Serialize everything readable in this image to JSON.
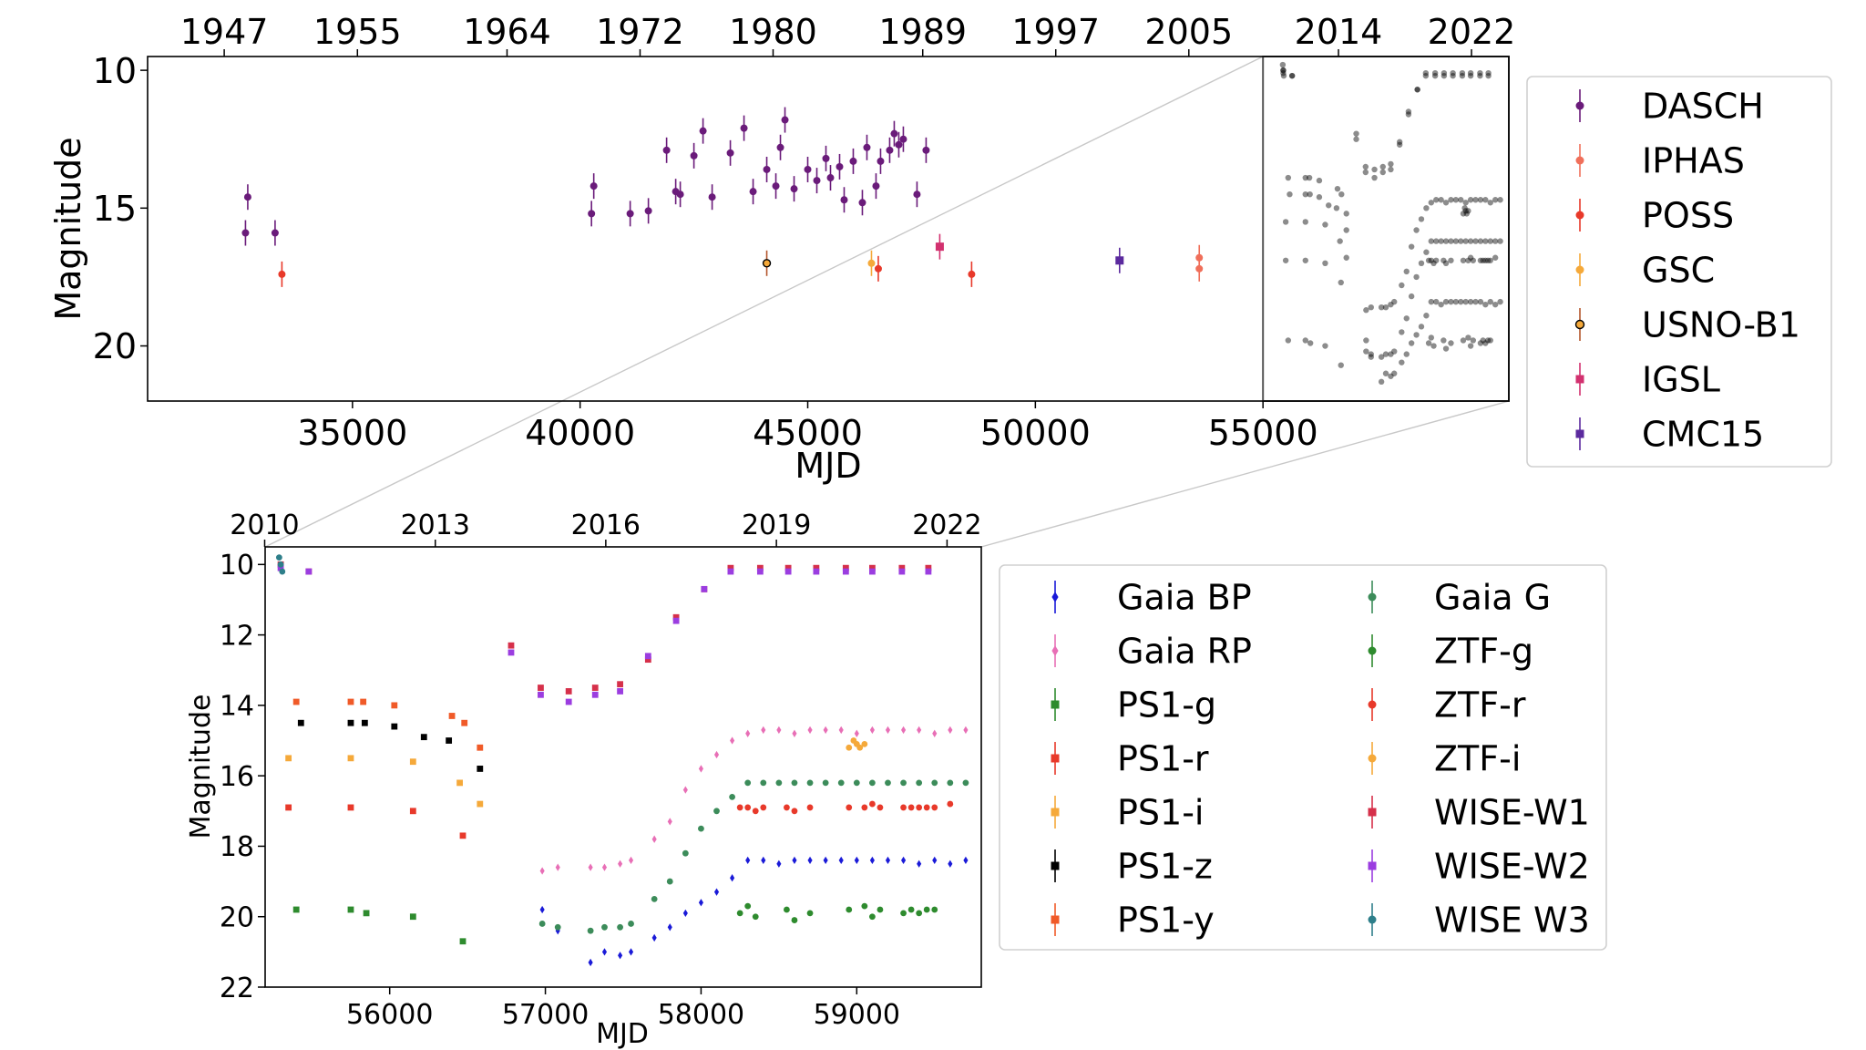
{
  "chart_data": [
    {
      "type": "scatter",
      "panel": "top",
      "xlabel": "MJD",
      "ylabel": "Magnitude",
      "x_range": [
        30500,
        60400
      ],
      "y_range": [
        22,
        9.5
      ],
      "y_inverted": true,
      "x_ticks": [
        35000,
        40000,
        45000,
        50000,
        55000
      ],
      "x_tick_labels": [
        "35000",
        "40000",
        "45000",
        "50000",
        "55000"
      ],
      "y_ticks": [
        10,
        15,
        20
      ],
      "y_tick_labels": [
        "10",
        "15",
        "20"
      ],
      "top_axis_ticks": [
        {
          "mjd": 32183,
          "label": "1947"
        },
        {
          "mjd": 35109,
          "label": "1955"
        },
        {
          "mjd": 38395,
          "label": "1964"
        },
        {
          "mjd": 41317,
          "label": "1972"
        },
        {
          "mjd": 44239,
          "label": "1980"
        },
        {
          "mjd": 47526,
          "label": "1989"
        },
        {
          "mjd": 50448,
          "label": "1997"
        },
        {
          "mjd": 53371,
          "label": "2005"
        },
        {
          "mjd": 56658,
          "label": "2014"
        },
        {
          "mjd": 59580,
          "label": "2022"
        }
      ],
      "inset": {
        "x_range": [
          55000,
          59800
        ],
        "y_range": [
          22,
          9.5
        ],
        "description": "zoomed recent light curve"
      },
      "legend": {
        "placement": "right",
        "entries": [
          {
            "label": "DASCH",
            "color": "#6a1b7a",
            "marker": "circle"
          },
          {
            "label": "IPHAS",
            "color": "#f06f5a",
            "marker": "circle"
          },
          {
            "label": "POSS",
            "color": "#e8392a",
            "marker": "circle"
          },
          {
            "label": "GSC",
            "color": "#f5a93a",
            "marker": "circle"
          },
          {
            "label": "USNO-B1",
            "color": "#b4562c",
            "marker": "circle-open"
          },
          {
            "label": "IGSL",
            "color": "#d2316f",
            "marker": "square"
          },
          {
            "label": "CMC15",
            "color": "#5b2a9e",
            "marker": "square"
          }
        ]
      },
      "series": [
        {
          "name": "DASCH",
          "x": [
            32650,
            32700,
            33300,
            40250,
            40300,
            41100,
            41500,
            41900,
            42100,
            42200,
            42500,
            42700,
            42900,
            43300,
            43600,
            43800,
            44100,
            44300,
            44400,
            44500,
            44700,
            45000,
            45200,
            45400,
            45500,
            45700,
            45800,
            46000,
            46200,
            46300,
            46500,
            46600,
            46800,
            46900,
            47000,
            47100,
            47400,
            47600
          ],
          "y": [
            15.9,
            14.6,
            15.9,
            15.2,
            14.2,
            15.2,
            15.1,
            12.9,
            14.4,
            14.5,
            13.1,
            12.2,
            14.6,
            13.0,
            12.1,
            14.4,
            13.6,
            14.2,
            12.8,
            11.8,
            14.3,
            13.6,
            14.0,
            13.2,
            13.9,
            13.5,
            14.7,
            13.3,
            14.8,
            12.8,
            14.2,
            13.3,
            12.9,
            12.3,
            12.7,
            12.5,
            14.5,
            12.9
          ]
        },
        {
          "name": "IPHAS",
          "x": [
            53600,
            53600
          ],
          "y": [
            16.8,
            17.2
          ]
        },
        {
          "name": "POSS",
          "x": [
            33450,
            46550,
            48600
          ],
          "y": [
            17.4,
            17.2,
            17.4
          ]
        },
        {
          "name": "GSC",
          "x": [
            46400
          ],
          "y": [
            17.0
          ]
        },
        {
          "name": "USNO-B1",
          "x": [
            44100
          ],
          "y": [
            17.0
          ]
        },
        {
          "name": "IGSL",
          "x": [
            47900
          ],
          "y": [
            16.4
          ]
        },
        {
          "name": "CMC15",
          "x": [
            51850
          ],
          "y": [
            16.9
          ]
        }
      ]
    },
    {
      "type": "scatter",
      "panel": "bottom",
      "xlabel": "MJD",
      "ylabel": "Magnitude",
      "x_range": [
        55200,
        59800
      ],
      "y_range": [
        22,
        9.5
      ],
      "y_inverted": true,
      "x_ticks": [
        56000,
        57000,
        58000,
        59000
      ],
      "x_tick_labels": [
        "56000",
        "57000",
        "58000",
        "59000"
      ],
      "y_ticks": [
        10,
        12,
        14,
        16,
        18,
        20,
        22
      ],
      "y_tick_labels": [
        "10",
        "12",
        "14",
        "16",
        "18",
        "20",
        "22"
      ],
      "top_axis_ticks": [
        {
          "mjd": 55197,
          "label": "2010"
        },
        {
          "mjd": 56293,
          "label": "2013"
        },
        {
          "mjd": 57388,
          "label": "2016"
        },
        {
          "mjd": 58484,
          "label": "2019"
        },
        {
          "mjd": 59580,
          "label": "2022"
        }
      ],
      "legend": {
        "placement": "right",
        "entries": [
          {
            "label": "Gaia BP",
            "color": "#1a1ad8",
            "marker": "diamond"
          },
          {
            "label": "Gaia RP",
            "color": "#e86fb6",
            "marker": "diamond"
          },
          {
            "label": "PS1-g",
            "color": "#2e8b2e",
            "marker": "square"
          },
          {
            "label": "PS1-r",
            "color": "#e8392a",
            "marker": "square"
          },
          {
            "label": "PS1-i",
            "color": "#f5a93a",
            "marker": "square"
          },
          {
            "label": "PS1-z",
            "color": "#000000",
            "marker": "square"
          },
          {
            "label": "PS1-y",
            "color": "#f05a28",
            "marker": "square"
          },
          {
            "label": "Gaia G",
            "color": "#3c8c5a",
            "marker": "circle"
          },
          {
            "label": "ZTF-g",
            "color": "#2e8b2e",
            "marker": "circle"
          },
          {
            "label": "ZTF-r",
            "color": "#e8392a",
            "marker": "circle"
          },
          {
            "label": "ZTF-i",
            "color": "#f5a93a",
            "marker": "circle"
          },
          {
            "label": "WISE-W1",
            "color": "#d6304a",
            "marker": "square"
          },
          {
            "label": "WISE-W2",
            "color": "#9b3de0",
            "marker": "square"
          },
          {
            "label": "WISE W3",
            "color": "#2e7f8a",
            "marker": "circle"
          }
        ]
      },
      "series": [
        {
          "name": "Gaia BP",
          "x": [
            56980,
            57080,
            57290,
            57380,
            57480,
            57550,
            57700,
            57800,
            57900,
            58000,
            58100,
            58200,
            58300,
            58400,
            58500,
            58600,
            58700,
            58800,
            58900,
            59000,
            59100,
            59200,
            59300,
            59400,
            59500,
            59600,
            59700
          ],
          "y": [
            19.8,
            20.4,
            21.3,
            21.0,
            21.1,
            21.0,
            20.6,
            20.3,
            19.9,
            19.6,
            19.3,
            18.9,
            18.4,
            18.4,
            18.5,
            18.4,
            18.4,
            18.4,
            18.4,
            18.4,
            18.4,
            18.4,
            18.4,
            18.5,
            18.4,
            18.5,
            18.4
          ]
        },
        {
          "name": "Gaia RP",
          "x": [
            56980,
            57080,
            57290,
            57380,
            57480,
            57550,
            57700,
            57800,
            57900,
            58000,
            58100,
            58200,
            58300,
            58400,
            58500,
            58600,
            58700,
            58800,
            58900,
            59000,
            59100,
            59200,
            59300,
            59400,
            59500,
            59600,
            59700
          ],
          "y": [
            18.7,
            18.6,
            18.6,
            18.6,
            18.5,
            18.4,
            17.8,
            17.3,
            16.4,
            15.8,
            15.4,
            15.0,
            14.8,
            14.7,
            14.7,
            14.8,
            14.7,
            14.7,
            14.7,
            14.8,
            14.7,
            14.7,
            14.7,
            14.7,
            14.8,
            14.7,
            14.7
          ]
        },
        {
          "name": "PS1-g",
          "x": [
            55400,
            55750,
            55850,
            56150,
            56470
          ],
          "y": [
            19.8,
            19.8,
            19.9,
            20.0,
            20.7
          ]
        },
        {
          "name": "PS1-r",
          "x": [
            55350,
            55750,
            56150,
            56470
          ],
          "y": [
            16.9,
            16.9,
            17.0,
            17.7
          ]
        },
        {
          "name": "PS1-i",
          "x": [
            55350,
            55750,
            56150,
            56450,
            56580
          ],
          "y": [
            15.5,
            15.5,
            15.6,
            16.2,
            16.8
          ]
        },
        {
          "name": "PS1-z",
          "x": [
            55430,
            55750,
            55840,
            56030,
            56220,
            56380,
            56580
          ],
          "y": [
            14.5,
            14.5,
            14.5,
            14.6,
            14.9,
            15.0,
            15.8
          ]
        },
        {
          "name": "PS1-y",
          "x": [
            55400,
            55750,
            55830,
            56030,
            56400,
            56480,
            56580
          ],
          "y": [
            13.9,
            13.9,
            13.9,
            14.0,
            14.3,
            14.5,
            15.2
          ]
        },
        {
          "name": "Gaia G",
          "x": [
            56980,
            57080,
            57290,
            57380,
            57480,
            57550,
            57700,
            57800,
            57900,
            58000,
            58100,
            58200,
            58300,
            58400,
            58500,
            58600,
            58700,
            58800,
            58900,
            59000,
            59100,
            59200,
            59300,
            59400,
            59500,
            59600,
            59700
          ],
          "y": [
            20.2,
            20.3,
            20.4,
            20.3,
            20.3,
            20.2,
            19.5,
            19.0,
            18.2,
            17.5,
            17.0,
            16.6,
            16.2,
            16.2,
            16.2,
            16.2,
            16.2,
            16.2,
            16.2,
            16.2,
            16.2,
            16.2,
            16.2,
            16.2,
            16.2,
            16.2,
            16.2
          ]
        },
        {
          "name": "ZTF-g",
          "x": [
            58250,
            58300,
            58350,
            58550,
            58600,
            58700,
            58950,
            59050,
            59100,
            59150,
            59300,
            59350,
            59400,
            59450,
            59500
          ],
          "y": [
            19.9,
            19.7,
            20.0,
            19.8,
            20.1,
            19.9,
            19.8,
            19.7,
            20.0,
            19.8,
            19.9,
            19.8,
            19.9,
            19.8,
            19.8
          ]
        },
        {
          "name": "ZTF-r",
          "x": [
            58250,
            58300,
            58350,
            58400,
            58550,
            58600,
            58700,
            58950,
            59050,
            59100,
            59150,
            59300,
            59350,
            59400,
            59450,
            59500,
            59600
          ],
          "y": [
            16.9,
            16.9,
            17.0,
            16.9,
            16.9,
            17.0,
            16.9,
            16.9,
            16.9,
            16.8,
            16.9,
            16.9,
            16.9,
            16.9,
            16.9,
            16.9,
            16.8
          ]
        },
        {
          "name": "ZTF-i",
          "x": [
            58950,
            58980,
            59000,
            59020,
            59050
          ],
          "y": [
            15.2,
            15.0,
            15.1,
            15.2,
            15.1
          ]
        },
        {
          "name": "WISE-W1",
          "x": [
            55300,
            55480,
            56780,
            56970,
            57150,
            57320,
            57480,
            57660,
            57840,
            58020,
            58190,
            58380,
            58560,
            58740,
            58930,
            59100,
            59290,
            59460
          ],
          "y": [
            10.0,
            10.2,
            12.3,
            13.5,
            13.6,
            13.5,
            13.4,
            12.7,
            11.5,
            10.7,
            10.1,
            10.1,
            10.1,
            10.1,
            10.1,
            10.1,
            10.1,
            10.1
          ]
        },
        {
          "name": "WISE-W2",
          "x": [
            55300,
            55480,
            56780,
            56970,
            57150,
            57320,
            57480,
            57660,
            57840,
            58020,
            58190,
            58380,
            58560,
            58740,
            58930,
            59100,
            59290,
            59460
          ],
          "y": [
            10.1,
            10.2,
            12.5,
            13.7,
            13.9,
            13.7,
            13.6,
            12.6,
            11.6,
            10.7,
            10.2,
            10.2,
            10.2,
            10.2,
            10.2,
            10.2,
            10.2,
            10.2
          ]
        },
        {
          "name": "WISE W3",
          "x": [
            55290,
            55300,
            55310
          ],
          "y": [
            9.8,
            10.0,
            10.2
          ]
        }
      ]
    }
  ]
}
